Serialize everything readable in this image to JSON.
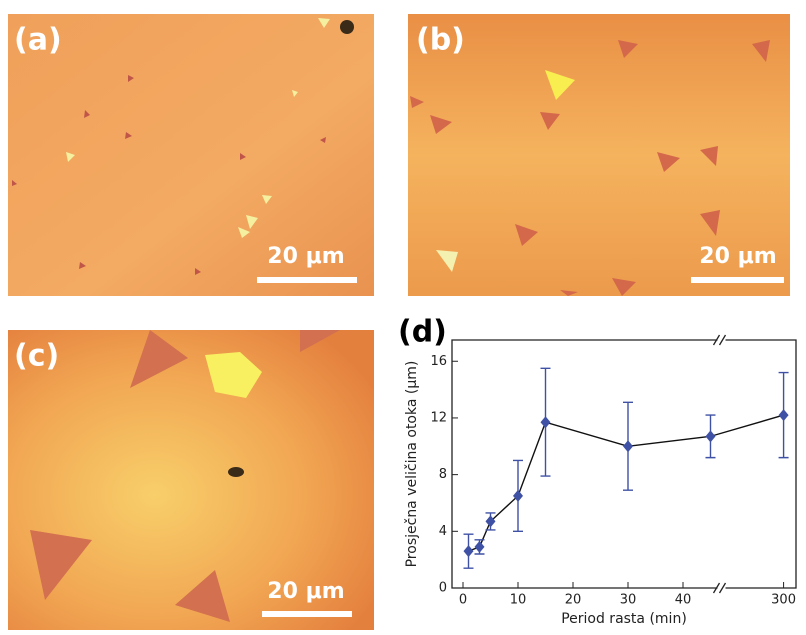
{
  "panels": [
    {
      "label": "(a)",
      "scale_bar": "20 μm"
    },
    {
      "label": "(b)",
      "scale_bar": "20 μm"
    },
    {
      "label": "(c)",
      "scale_bar": "20 μm"
    }
  ],
  "chart_data": {
    "type": "errorline",
    "panel_label": "(d)",
    "x_label": "Period rasta (min)",
    "y_label": "Prosječna veličina otoka (μm)",
    "x": [
      1,
      3,
      5,
      10,
      15,
      30,
      45,
      300
    ],
    "values": [
      2.6,
      2.9,
      4.7,
      6.5,
      11.7,
      10.0,
      10.7,
      12.2
    ],
    "errors": [
      1.2,
      0.5,
      0.6,
      2.5,
      3.8,
      3.1,
      1.5,
      3.0
    ],
    "color": "#3f51a5",
    "xlim": [
      -2,
      302
    ],
    "x_break": [
      47,
      290
    ],
    "xticks": [
      0,
      10,
      20,
      30,
      40,
      300
    ],
    "ylim": [
      0,
      17.5
    ],
    "yticks": [
      0,
      4,
      8,
      12,
      16
    ]
  }
}
